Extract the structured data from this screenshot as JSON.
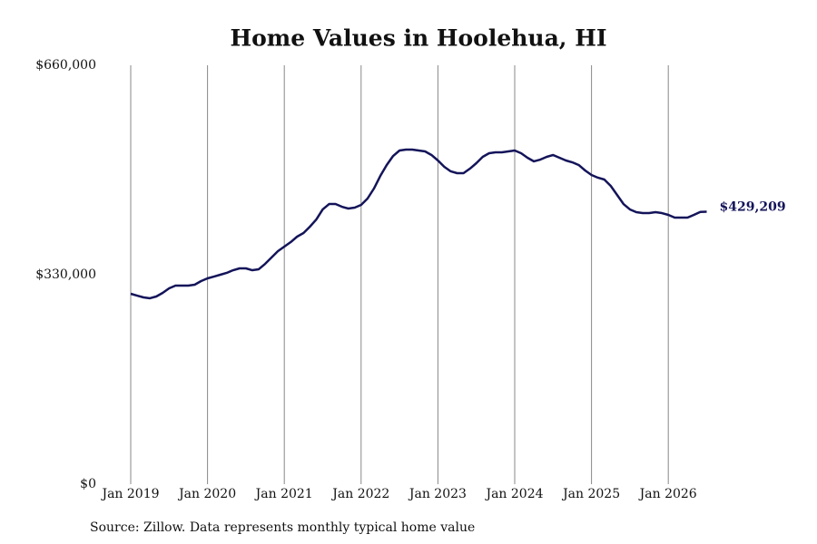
{
  "chart_data": {
    "type": "line",
    "title": "Home Values in Hoolehua, HI",
    "source": "Source: Zillow. Data represents monthly typical home value",
    "x": [
      "2019-01",
      "2019-02",
      "2019-03",
      "2019-04",
      "2019-05",
      "2019-06",
      "2019-07",
      "2019-08",
      "2019-09",
      "2019-10",
      "2019-11",
      "2019-12",
      "2020-01",
      "2020-02",
      "2020-03",
      "2020-04",
      "2020-05",
      "2020-06",
      "2020-07",
      "2020-08",
      "2020-09",
      "2020-10",
      "2020-11",
      "2020-12",
      "2021-01",
      "2021-02",
      "2021-03",
      "2021-04",
      "2021-05",
      "2021-06",
      "2021-07",
      "2021-08",
      "2021-09",
      "2021-10",
      "2021-11",
      "2021-12",
      "2022-01",
      "2022-02",
      "2022-03",
      "2022-04",
      "2022-05",
      "2022-06",
      "2022-07",
      "2022-08",
      "2022-09",
      "2022-10",
      "2022-11",
      "2022-12",
      "2023-01",
      "2023-02",
      "2023-03",
      "2023-04",
      "2023-05",
      "2023-06",
      "2023-07",
      "2023-08",
      "2023-09",
      "2023-10",
      "2023-11",
      "2023-12",
      "2024-01",
      "2024-02",
      "2024-03",
      "2024-04",
      "2024-05",
      "2024-06",
      "2024-07",
      "2024-08",
      "2024-09",
      "2024-10",
      "2024-11",
      "2024-12",
      "2025-01",
      "2025-02",
      "2025-03",
      "2025-04",
      "2025-05",
      "2025-06",
      "2025-07",
      "2025-08",
      "2025-09",
      "2025-10",
      "2025-11",
      "2025-12",
      "2026-01",
      "2026-02",
      "2026-03",
      "2026-04",
      "2026-05",
      "2026-06",
      "2026-07"
    ],
    "series": [
      {
        "name": "Typical home value",
        "color": "#14145a",
        "values": [
          300000,
          297100,
          294300,
          292900,
          295700,
          301400,
          308600,
          312900,
          312900,
          312900,
          314300,
          320000,
          324300,
          327100,
          330000,
          332900,
          337100,
          340000,
          340000,
          337100,
          338600,
          347100,
          357100,
          367100,
          374300,
          381400,
          390000,
          395700,
          405700,
          417100,
          432900,
          441400,
          441400,
          437100,
          434300,
          435700,
          440000,
          450000,
          465700,
          485700,
          502900,
          517100,
          525700,
          527100,
          527100,
          525700,
          524300,
          518600,
          510000,
          500000,
          492900,
          490000,
          490000,
          497100,
          505700,
          515700,
          521400,
          522900,
          522900,
          524300,
          525700,
          521400,
          514300,
          508600,
          511400,
          515700,
          518600,
          514300,
          510000,
          507100,
          502900,
          494300,
          487100,
          482900,
          480000,
          470000,
          455700,
          441400,
          432900,
          428600,
          427100,
          427100,
          428600,
          427100,
          424300,
          420000,
          420000,
          420000,
          424300,
          429000,
          429209
        ],
        "value_labels": [
          null,
          null,
          null,
          null,
          null,
          null,
          null,
          null,
          null,
          null,
          null,
          null,
          null,
          null,
          null,
          null,
          null,
          null,
          null,
          null,
          null,
          null,
          null,
          null,
          null,
          null,
          null,
          null,
          null,
          null,
          null,
          null,
          null,
          null,
          null,
          null,
          null,
          null,
          null,
          null,
          null,
          null,
          null,
          null,
          null,
          null,
          null,
          null,
          null,
          null,
          null,
          null,
          null,
          null,
          null,
          null,
          null,
          null,
          null,
          null,
          null,
          null,
          null,
          null,
          null,
          null,
          null,
          null,
          null,
          null,
          null,
          null,
          null,
          null,
          null,
          null,
          null,
          null,
          null,
          null,
          null,
          null,
          null,
          null,
          null,
          null,
          null,
          null,
          null,
          null,
          "$429,209"
        ]
      }
    ],
    "xticks": [
      {
        "value": "2019-01",
        "label": "Jan 2019"
      },
      {
        "value": "2020-01",
        "label": "Jan 2020"
      },
      {
        "value": "2021-01",
        "label": "Jan 2021"
      },
      {
        "value": "2022-01",
        "label": "Jan 2022"
      },
      {
        "value": "2023-01",
        "label": "Jan 2023"
      },
      {
        "value": "2024-01",
        "label": "Jan 2024"
      },
      {
        "value": "2025-01",
        "label": "Jan 2025"
      },
      {
        "value": "2026-01",
        "label": "Jan 2026"
      }
    ],
    "ylim": [
      0,
      660000
    ],
    "yticks": [
      {
        "value": 0,
        "label": "$0"
      },
      {
        "value": 330000,
        "label": "$330,000"
      },
      {
        "value": 660000,
        "label": "$660,000"
      }
    ],
    "grid": "x"
  }
}
